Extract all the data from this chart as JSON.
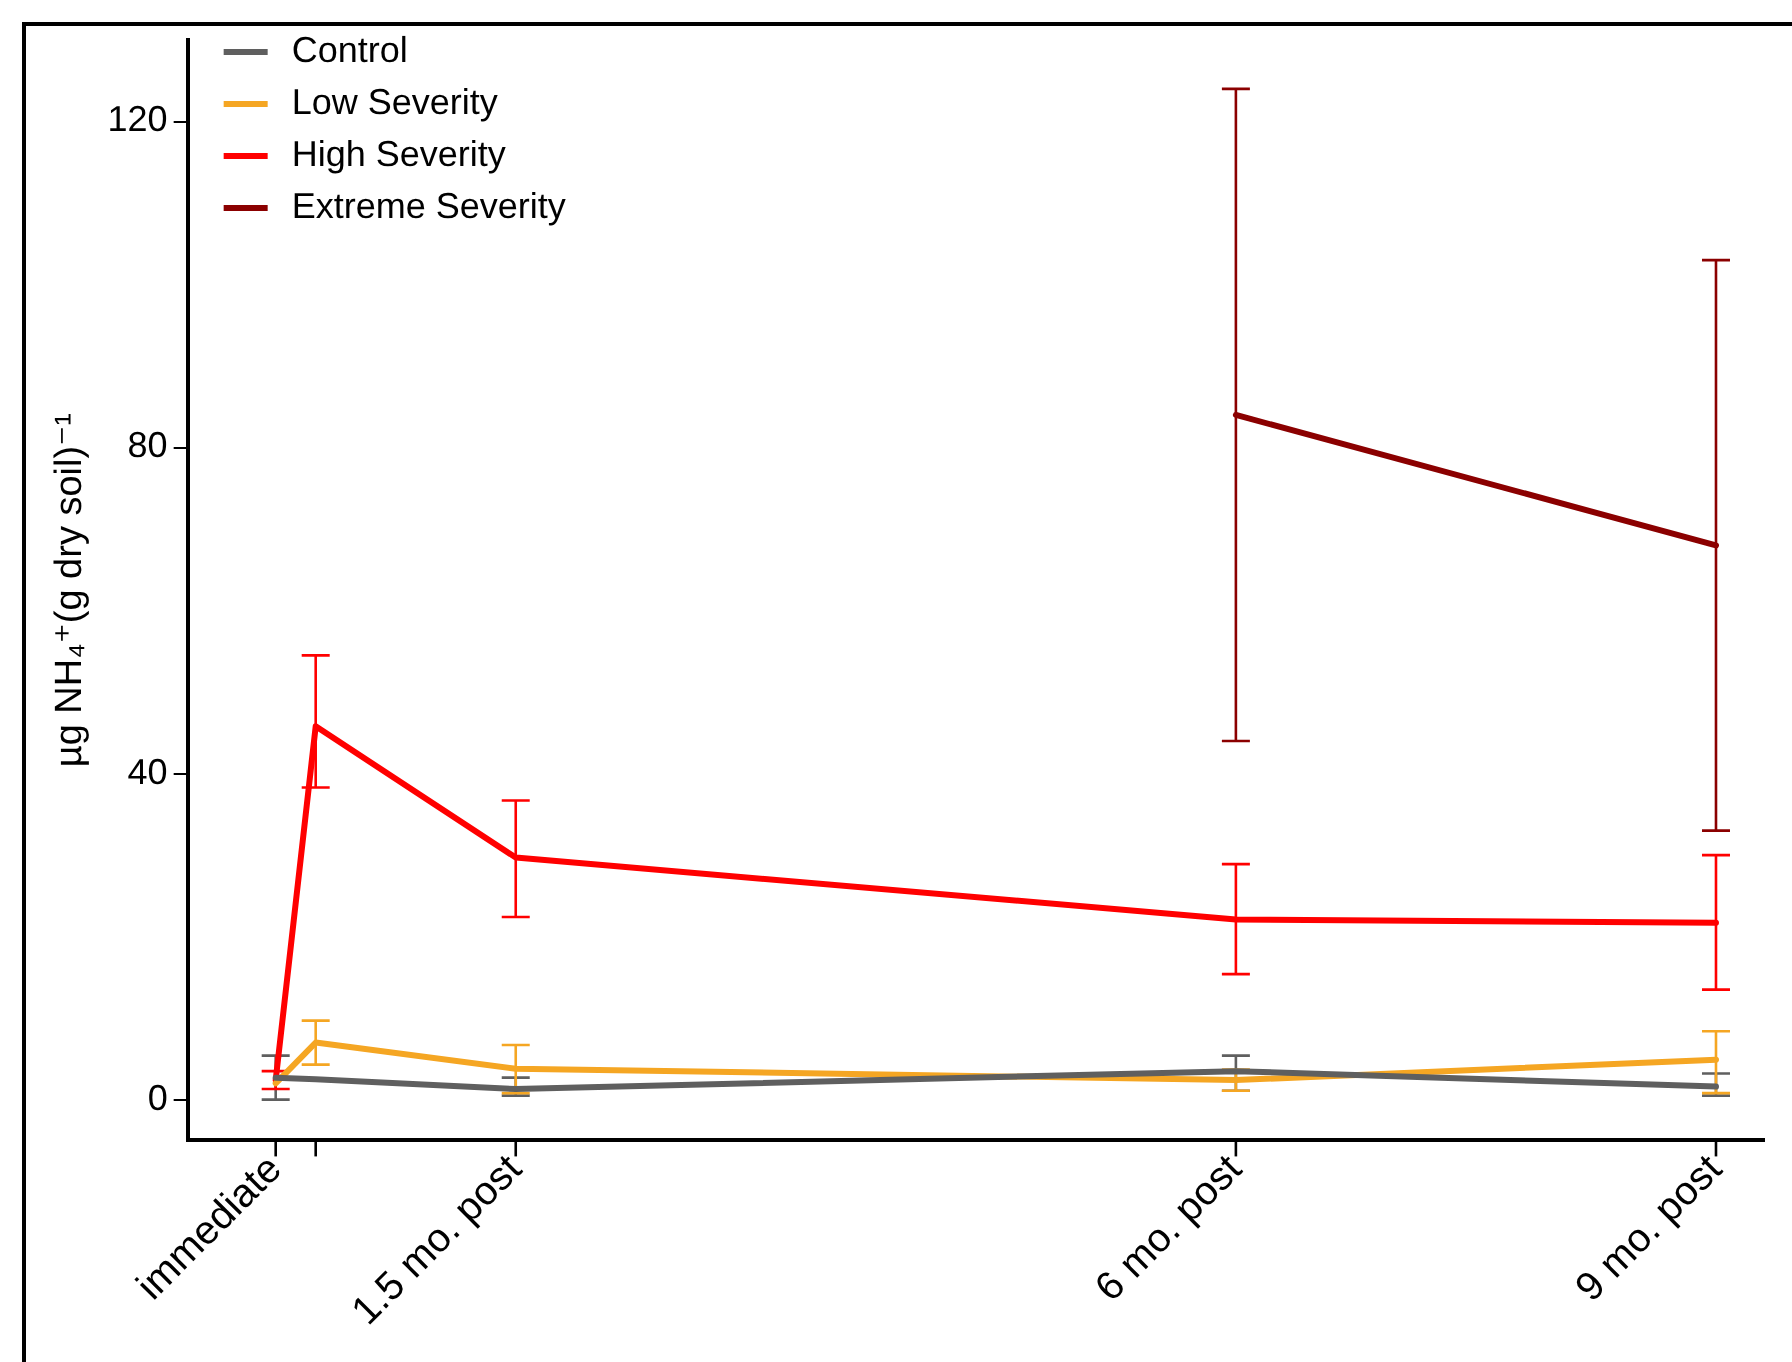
{
  "chart_data": {
    "type": "line",
    "ylabel": "µg NH₄⁺(g dry soil)⁻¹",
    "x": [
      0,
      0.25,
      1.5,
      6,
      9
    ],
    "xlim": [
      -0.55,
      9.3
    ],
    "xticks": [
      {
        "value": 0,
        "label": "immediate"
      },
      {
        "value": 0.25,
        "label": null
      },
      {
        "value": 1.5,
        "label": "1.5 mo. post"
      },
      {
        "value": 6,
        "label": "6 mo. post"
      },
      {
        "value": 9,
        "label": "9 mo. post"
      }
    ],
    "ylim": [
      -5,
      130
    ],
    "yticks": [
      0,
      40,
      80,
      120
    ],
    "series": [
      {
        "name": "Control",
        "color": "#5f5f5f",
        "values": [
          2.7,
          2.5,
          1.3,
          3.5,
          1.6
        ],
        "errors": [
          [
            0,
            5.4
          ],
          null,
          [
            0.5,
            2.7
          ],
          [
            1.1,
            5.4
          ],
          [
            0.5,
            3.2
          ]
        ]
      },
      {
        "name": "Low Severity",
        "color": "#f5a623",
        "values": [
          2,
          7,
          3.8,
          2.4,
          4.9
        ],
        "errors": [
          null,
          [
            4.3,
            9.7
          ],
          [
            0.8,
            6.7
          ],
          [
            1.1,
            3.7
          ],
          [
            0.8,
            8.4
          ]
        ]
      },
      {
        "name": "High Severity",
        "color": "#ff0000",
        "values": [
          2.4,
          45.8,
          29.7,
          22.1,
          21.7
        ],
        "errors": [
          [
            1.3,
            3.5
          ],
          [
            38.3,
            54.5
          ],
          [
            22.4,
            36.7
          ],
          [
            15.4,
            28.9
          ],
          [
            13.5,
            30
          ]
        ]
      },
      {
        "name": "Extreme Severity",
        "color": "#8b0000",
        "values": [
          null,
          null,
          null,
          84,
          68
        ],
        "errors": [
          null,
          null,
          null,
          [
            44,
            124
          ],
          [
            33,
            103
          ]
        ]
      }
    ],
    "grid": false,
    "legend": "top left",
    "line_style": "solid"
  }
}
